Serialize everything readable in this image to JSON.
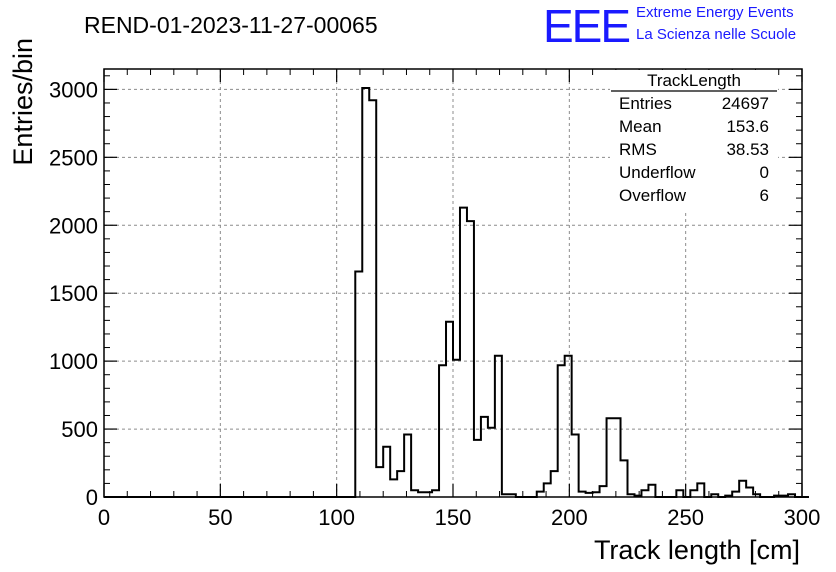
{
  "chart_data": {
    "type": "histogram",
    "title": "REND-01-2023-11-27-00065",
    "xlabel": "Track length [cm]",
    "ylabel": "Entries/bin",
    "xlim": [
      0,
      300
    ],
    "ylim": [
      0,
      3150
    ],
    "x_ticks": [
      "0",
      "50",
      "100",
      "150",
      "200",
      "250",
      "300"
    ],
    "y_ticks": [
      "0",
      "500",
      "1000",
      "1500",
      "2000",
      "2500",
      "3000"
    ],
    "grid": true,
    "bin_width": 3,
    "bin_start": 0,
    "values": [
      0,
      0,
      0,
      0,
      0,
      0,
      0,
      0,
      0,
      0,
      0,
      0,
      0,
      0,
      0,
      0,
      0,
      0,
      0,
      0,
      0,
      0,
      0,
      0,
      0,
      0,
      0,
      0,
      0,
      0,
      0,
      0,
      0,
      0,
      0,
      0,
      1660,
      3010,
      2920,
      220,
      370,
      130,
      190,
      460,
      50,
      35,
      35,
      50,
      970,
      1290,
      1010,
      2130,
      2030,
      420,
      590,
      510,
      1040,
      20,
      20,
      0,
      0,
      0,
      40,
      100,
      190,
      970,
      1040,
      460,
      40,
      30,
      35,
      80,
      580,
      580,
      270,
      20,
      10,
      50,
      90,
      0,
      0,
      0,
      50,
      0,
      50,
      100,
      0,
      20,
      0,
      10,
      40,
      120,
      70,
      20,
      0,
      0,
      10,
      10,
      20,
      0,
      0
    ]
  },
  "stats_box": {
    "name": "TrackLength",
    "rows": [
      {
        "label": "Entries",
        "value": "24697"
      },
      {
        "label": "Mean",
        "value": "153.6"
      },
      {
        "label": "RMS",
        "value": "38.53"
      },
      {
        "label": "Underflow",
        "value": "0"
      },
      {
        "label": "Overflow",
        "value": "6"
      }
    ]
  },
  "logo": {
    "mark": "EEE",
    "line1": "Extreme Energy Events",
    "line2": "La Scienza nelle Scuole",
    "color": "#1a1aff"
  }
}
